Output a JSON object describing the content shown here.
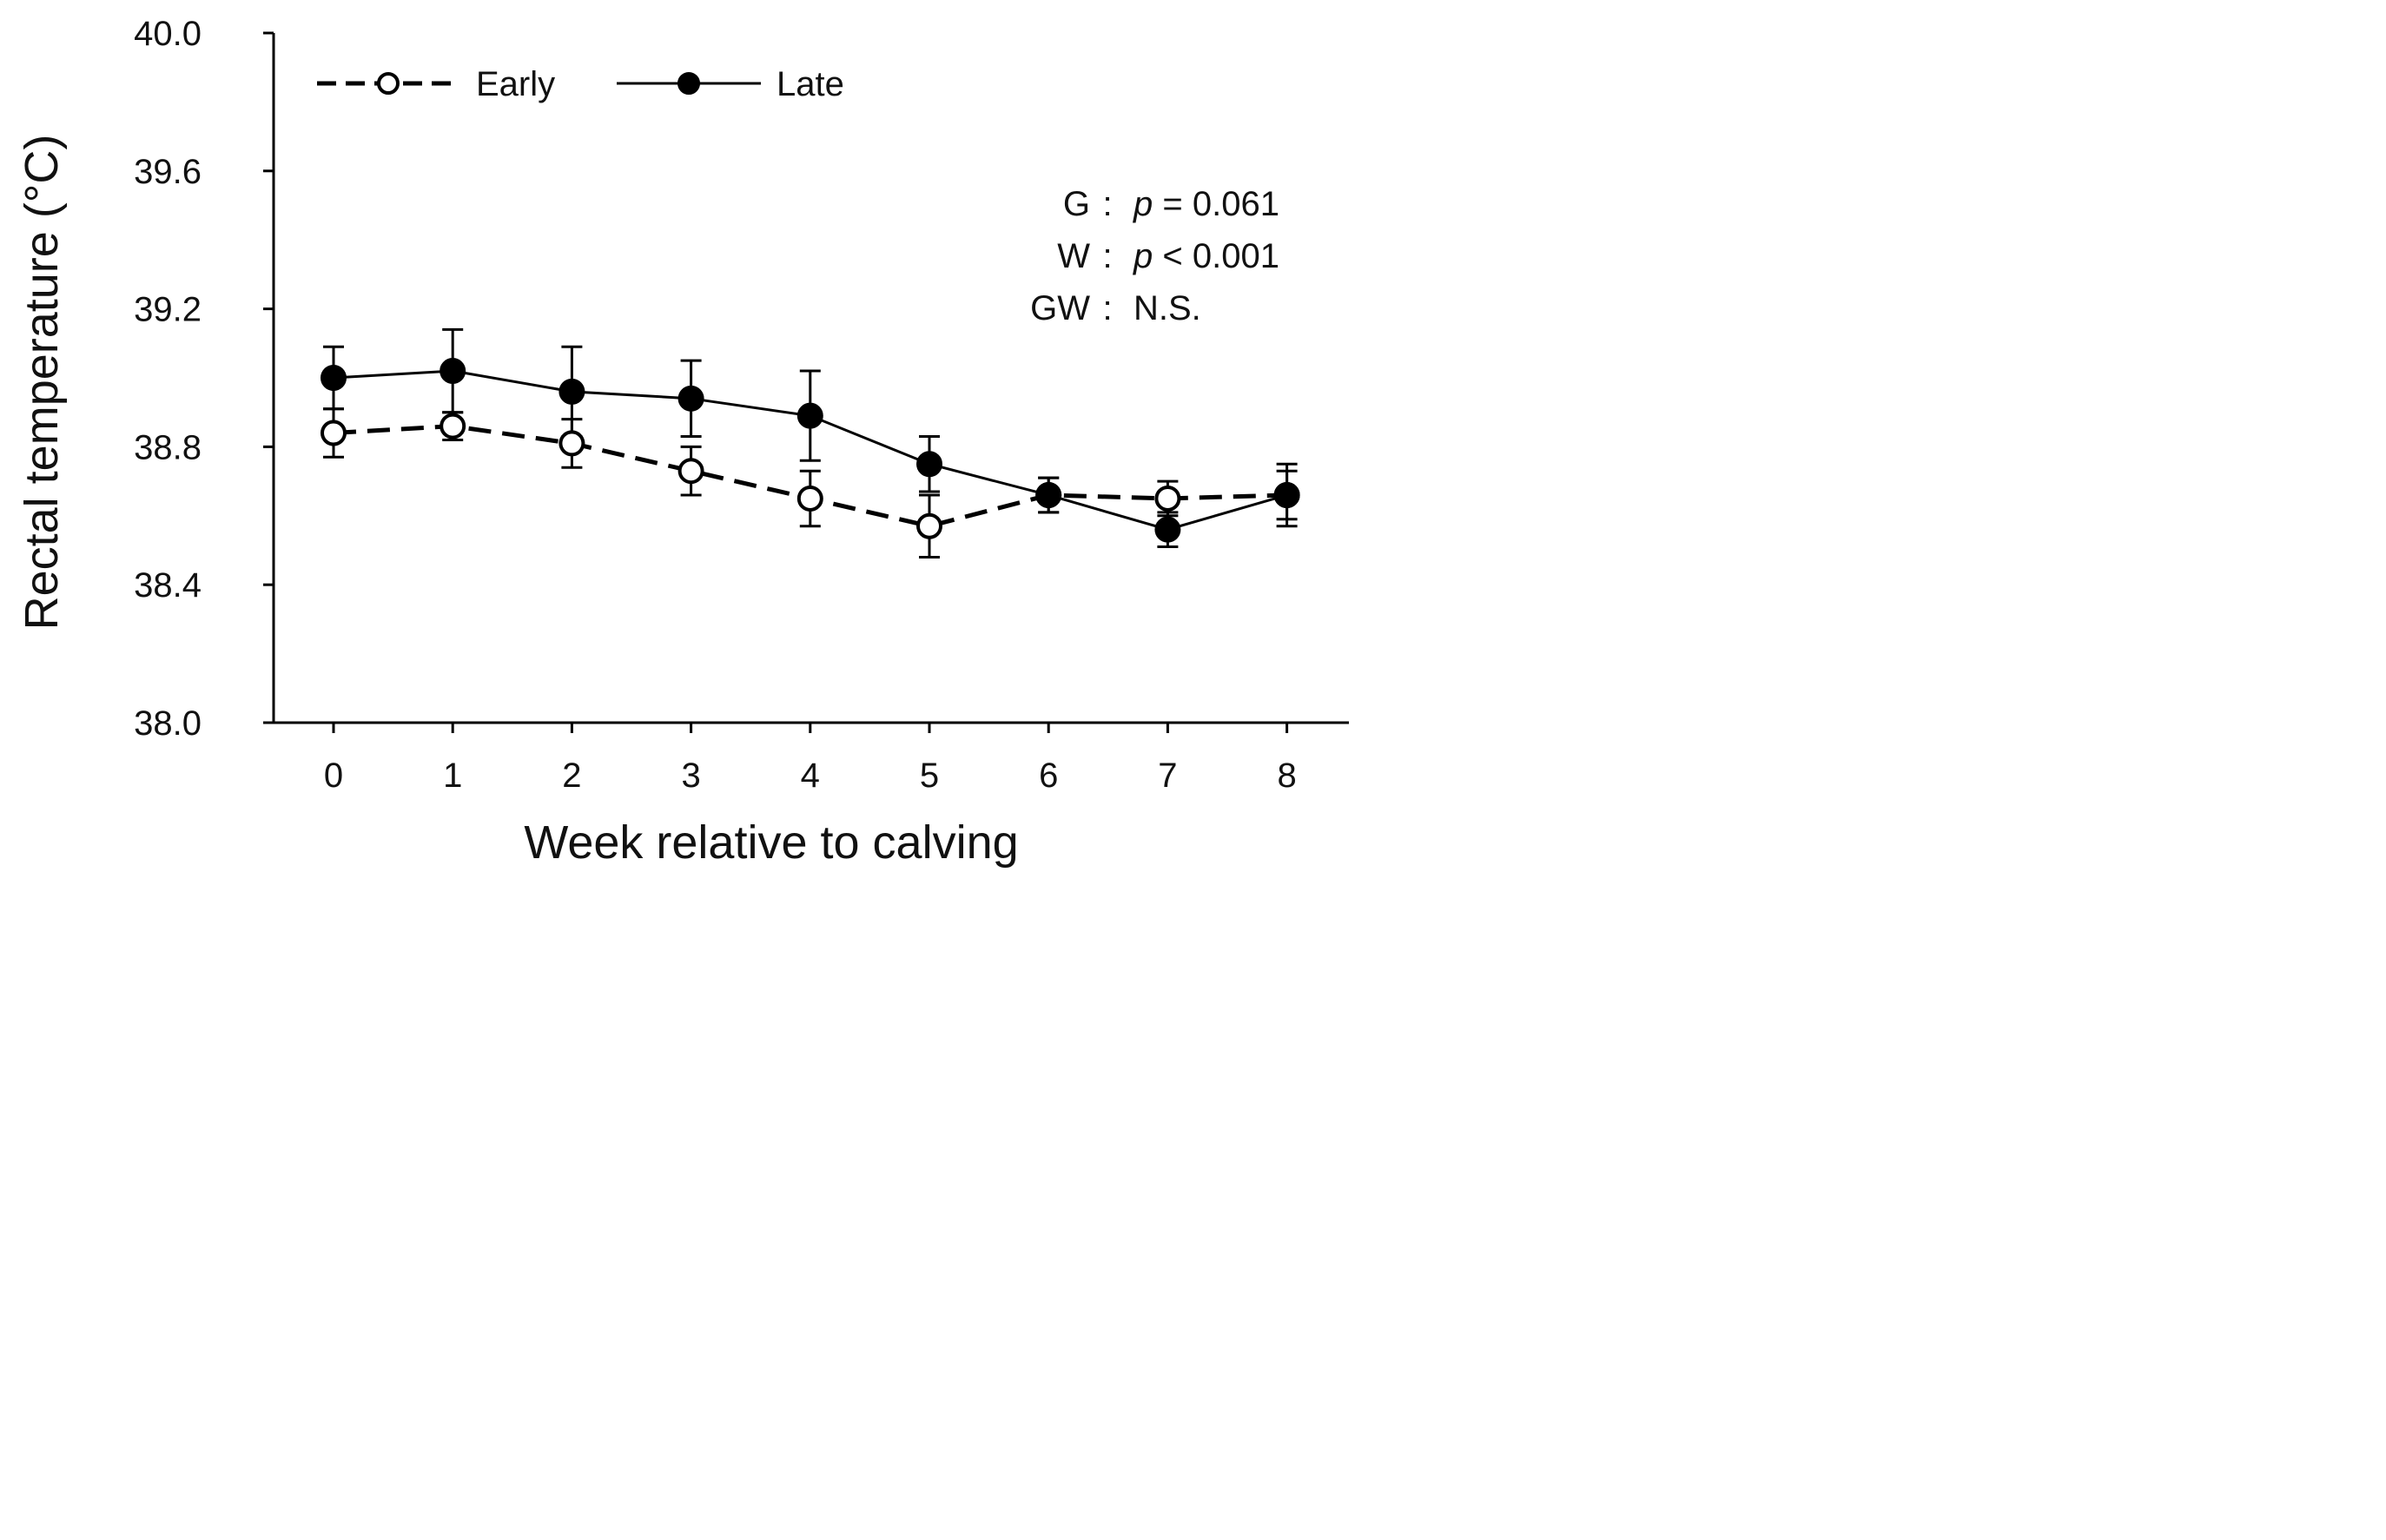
{
  "chart_data": {
    "type": "line",
    "title": "",
    "xlabel": "Week relative to calving",
    "ylabel": "Rectal temperature  (°C)",
    "x": [
      0,
      1,
      2,
      3,
      4,
      5,
      6,
      7,
      8
    ],
    "x_tick_labels": [
      "0",
      "1",
      "2",
      "3",
      "4",
      "5",
      "6",
      "7",
      "8"
    ],
    "ylim": [
      38.0,
      40.0
    ],
    "y_ticks": [
      38.0,
      38.4,
      38.8,
      39.2,
      39.6,
      40.0
    ],
    "y_tick_labels": [
      "38.0",
      "38.4",
      "38.8",
      "39.2",
      "39.6",
      "40.0"
    ],
    "grid": false,
    "legend_position": "top-left",
    "series": [
      {
        "name": "Early",
        "marker": "open-circle",
        "line_style": "dashed",
        "color": "#000000",
        "values": [
          38.84,
          38.86,
          38.81,
          38.73,
          38.65,
          38.57,
          38.66,
          38.65,
          38.66
        ],
        "error": [
          0.07,
          0.04,
          0.07,
          0.07,
          0.08,
          0.09,
          0.05,
          0.05,
          0.07
        ]
      },
      {
        "name": "Late",
        "marker": "filled-circle",
        "line_style": "solid",
        "color": "#000000",
        "values": [
          39.0,
          39.02,
          38.96,
          38.94,
          38.89,
          38.75,
          38.66,
          38.56,
          38.66
        ],
        "error": [
          0.09,
          0.12,
          0.13,
          0.11,
          0.13,
          0.08,
          0.05,
          0.05,
          0.09
        ]
      }
    ],
    "annotations": [
      {
        "label": "G",
        "sep": ":",
        "p": "p",
        "text": " = 0.061"
      },
      {
        "label": "W",
        "sep": ":",
        "p": "p",
        "text": " < 0.001"
      },
      {
        "label": "GW",
        "sep": ":",
        "p": "",
        "text": "N.S."
      }
    ]
  }
}
